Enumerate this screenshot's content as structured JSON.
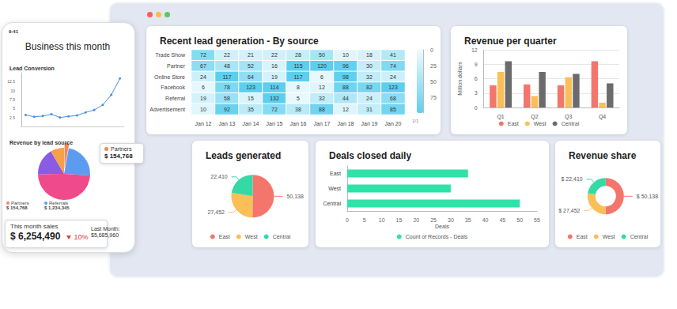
{
  "chart_data": [
    {
      "type": "heatmap",
      "title": "Recent lead generation - By source",
      "x": [
        "Jan 12",
        "Jan 13",
        "Jan 14",
        "Jan 15",
        "Jan 16",
        "Jan 17",
        "Jan 18",
        "Jan 19",
        "Jan 20"
      ],
      "y": [
        "Trade Show",
        "Partner",
        "Online Store",
        "Facebook",
        "Referral",
        "Advertisement"
      ],
      "cells": [
        [
          72,
          22,
          21,
          22,
          28,
          50,
          10,
          18,
          41
        ],
        [
          67,
          48,
          52,
          16,
          115,
          120,
          96,
          30,
          74
        ],
        [
          24,
          117,
          64,
          19,
          117,
          6,
          98,
          32,
          24
        ],
        [
          6,
          78,
          123,
          114,
          8,
          12,
          88,
          82,
          123
        ],
        [
          19,
          58,
          15,
          132,
          5,
          32,
          44,
          24,
          68
        ],
        [
          10,
          92,
          35,
          72,
          38,
          88,
          12,
          31,
          85
        ]
      ],
      "color": "#5ccfee",
      "colorbar_range": [
        0,
        100
      ],
      "colorbar_ticks": [
        0,
        25,
        50,
        75
      ],
      "pager": "1/1",
      "data_labels": true
    },
    {
      "type": "bar",
      "title": "Revenue per quarter",
      "y_label": "Million dollars",
      "categories": [
        "Q1",
        "Q2",
        "Q3",
        "Q4"
      ],
      "series": [
        {
          "name": "East",
          "color": "#f4756b",
          "values": [
            4.6,
            4.8,
            4.6,
            9.6
          ]
        },
        {
          "name": "West",
          "color": "#fbbf57",
          "values": [
            7.4,
            2.4,
            6.3,
            1
          ]
        },
        {
          "name": "Central",
          "color": "#6b6b6b",
          "values": [
            9.6,
            7.4,
            7,
            5
          ]
        }
      ],
      "ylim": [
        0,
        12
      ],
      "yticks": [
        0,
        3,
        6,
        9,
        12
      ],
      "grid": true,
      "legend": "bottom"
    },
    {
      "type": "pie",
      "title": "Leads generated",
      "categories": [
        "East",
        "West",
        "Central"
      ],
      "values": [
        50138,
        27452,
        22410
      ],
      "value_labels": [
        "50,138",
        "27,452",
        "22,410"
      ],
      "colors": [
        "#f4756b",
        "#fbbf57",
        "#34d9a5"
      ],
      "data_labels": true,
      "legend": "bottom"
    },
    {
      "type": "bar",
      "orientation": "horizontal",
      "title": "Deals closed daily",
      "x_label": "Deals",
      "categories": [
        "East",
        "West",
        "Central"
      ],
      "series": [
        {
          "name": "Count of Records - Deals",
          "color": "#2fe2a8",
          "values": [
            35,
            30,
            50
          ]
        }
      ],
      "xlim": [
        0,
        55
      ],
      "xticks": [
        0,
        5,
        10,
        15,
        20,
        25,
        30,
        35,
        40,
        45,
        50,
        55
      ],
      "legend": "bottom"
    },
    {
      "type": "donut",
      "title": "Revenue share",
      "categories": [
        "East",
        "West",
        "Central"
      ],
      "values": [
        50138,
        27452,
        22410
      ],
      "value_labels": [
        "$ 50,138",
        "$ 27,452",
        "$ 22,410"
      ],
      "colors": [
        "#f4756b",
        "#fbbf57",
        "#34d9a5"
      ],
      "data_labels": true,
      "legend": "bottom"
    },
    {
      "type": "line",
      "title": "Lead Conversion",
      "categories": [
        null,
        null,
        null,
        null,
        null,
        null,
        null,
        null,
        null,
        null,
        null,
        null
      ],
      "values": [
        3.2,
        2.7,
        2.9,
        3.4,
        2.5,
        2.8,
        3.1,
        3.9,
        4.6,
        6.0,
        8.8,
        13.4
      ],
      "ylim": [
        0,
        15
      ],
      "yticks": [
        2.5,
        5,
        7.5,
        10,
        12.5
      ],
      "color": "#4a8fe0",
      "marker": "circle",
      "tick_labels": "y"
    },
    {
      "type": "pie",
      "title": "Revenue by lead source",
      "categories": [
        "Partners",
        "Referrals",
        null,
        null,
        null
      ],
      "values": [
        154768,
        1234345,
        2600000,
        900000,
        450000
      ],
      "value_labels": [
        "$ 154,768",
        "$ 1,234,345",
        null,
        null,
        null
      ],
      "colors": [
        "#f3875c",
        "#5b9cf0",
        "#ef4a8c",
        "#8a5be3",
        "#f7a04a"
      ]
    }
  ],
  "phone": {
    "time": "9:41",
    "title": "Business this month",
    "callout": {
      "label": "Partners",
      "value": "$ 154,768"
    },
    "sales": {
      "label": "This month sales",
      "value": "$ 6,254,490",
      "change": "10%"
    },
    "last_month": {
      "label": "Last Month:",
      "value": "$5,685,960"
    }
  }
}
